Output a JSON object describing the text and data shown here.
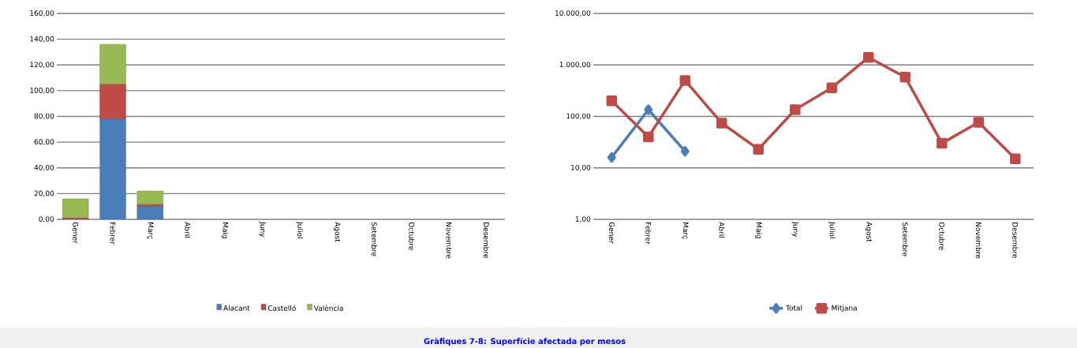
{
  "chart_data": [
    {
      "type": "bar",
      "stacked": true,
      "grid": "y",
      "legend": "bottom",
      "categories": [
        "Gener",
        "Febrer",
        "Març",
        "Abril",
        "Maig",
        "Juny",
        "Juliol",
        "Agost",
        "Setembre",
        "Octubre",
        "Novembre",
        "Desembre"
      ],
      "series": [
        {
          "name": "Alacant",
          "color": "#4a7ebb",
          "values": [
            0,
            78,
            10,
            null,
            null,
            null,
            null,
            null,
            null,
            null,
            null,
            null
          ]
        },
        {
          "name": "Castelló",
          "color": "#be4b48",
          "values": [
            1,
            27,
            1.5,
            null,
            null,
            null,
            null,
            null,
            null,
            null,
            null,
            null
          ]
        },
        {
          "name": "València",
          "color": "#98b954",
          "values": [
            15,
            31,
            10.5,
            null,
            null,
            null,
            null,
            null,
            null,
            null,
            null,
            null
          ]
        }
      ],
      "ylim": [
        0,
        160
      ],
      "yticks": [
        {
          "value": 0,
          "label": "0,00"
        },
        {
          "value": 20,
          "label": "20,00"
        },
        {
          "value": 40,
          "label": "40,00"
        },
        {
          "value": 60,
          "label": "60,00"
        },
        {
          "value": 80,
          "label": "80,00"
        },
        {
          "value": 100,
          "label": "100,00"
        },
        {
          "value": 120,
          "label": "120,00"
        },
        {
          "value": 140,
          "label": "140,00"
        },
        {
          "value": 160,
          "label": "160,00"
        }
      ],
      "annotations": [
        "Gràfiques 7-8: Superfície afectada per mesos"
      ]
    },
    {
      "type": "line",
      "log": "y",
      "grid": "y",
      "legend": "bottom",
      "line_style": "solid",
      "categories": [
        "Gener",
        "Febrer",
        "Març",
        "Abril",
        "Maig",
        "Juny",
        "Juliol",
        "Agost",
        "Setembre",
        "Octubre",
        "Novembre",
        "Desembre"
      ],
      "series": [
        {
          "name": "Total",
          "color": "#4a7ebb",
          "marker": "diamond",
          "values": [
            16,
            135,
            21,
            null,
            null,
            null,
            null,
            null,
            null,
            null,
            null,
            null
          ]
        },
        {
          "name": "Mitjana",
          "color": "#be4b48",
          "marker": "square",
          "values": [
            200,
            40,
            500,
            74,
            23,
            135,
            360,
            1400,
            580,
            30,
            77,
            15
          ]
        }
      ],
      "ylim": [
        1,
        10000
      ],
      "yticks": [
        {
          "value": 1,
          "label": "1,00"
        },
        {
          "value": 10,
          "label": "10,00"
        },
        {
          "value": 100,
          "label": "100,00"
        },
        {
          "value": 1000,
          "label": "1.000,00"
        },
        {
          "value": 10000,
          "label": "10.000,00"
        }
      ]
    }
  ]
}
